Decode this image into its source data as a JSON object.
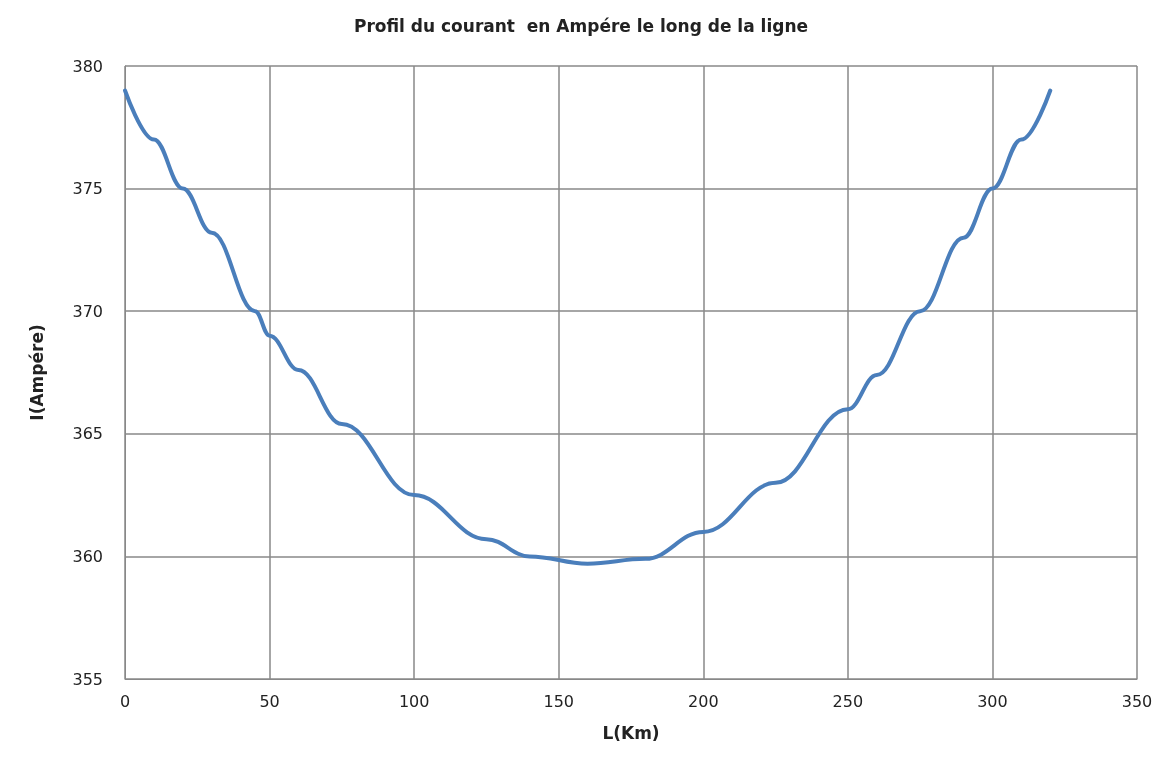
{
  "chart_data": {
    "type": "line",
    "title": "Profil du courant  en Ampére le long de la ligne",
    "xlabel": "L(Km)",
    "ylabel": "I(Ampére)",
    "x": [
      0,
      10,
      20,
      30,
      45,
      50,
      60,
      75,
      100,
      125,
      140,
      160,
      180,
      200,
      225,
      250,
      260,
      275,
      290,
      300,
      310,
      320
    ],
    "series": [
      {
        "color": "#4a7ebb",
        "values": [
          379,
          377,
          375,
          373.2,
          370,
          369,
          367.6,
          365.4,
          362.5,
          360.7,
          360,
          359.7,
          359.9,
          361,
          363,
          366,
          367.4,
          370,
          373,
          375,
          377,
          379
        ]
      }
    ],
    "xlim": [
      0,
      350
    ],
    "xticks": [
      0,
      50,
      100,
      150,
      200,
      250,
      300,
      350
    ],
    "ylim": [
      355,
      380
    ],
    "yticks": [
      355,
      360,
      365,
      370,
      375,
      380
    ],
    "grid": true,
    "marker": "none",
    "line_style": "solid"
  }
}
